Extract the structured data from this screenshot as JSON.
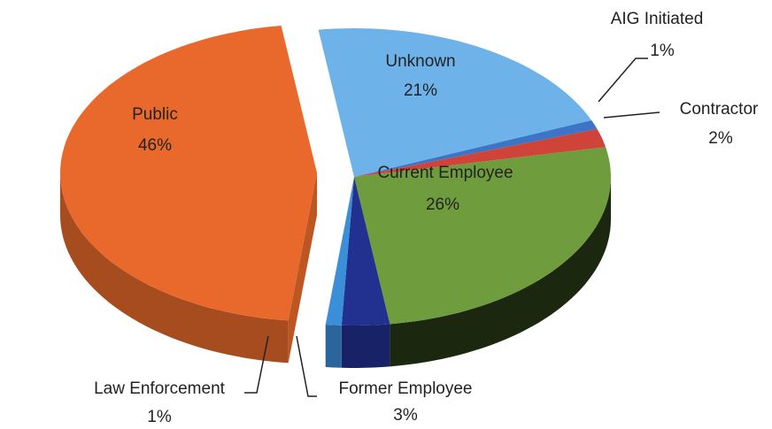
{
  "chart_data": {
    "type": "pie3d",
    "categories": [
      "Unknown",
      "AIG Initiated",
      "Contractor",
      "Current Employee",
      "Former Employee",
      "Law Enforcement",
      "Public"
    ],
    "values": [
      21,
      1,
      2,
      26,
      3,
      1,
      46
    ],
    "value_labels": [
      "21%",
      "1%",
      "2%",
      "26%",
      "3%",
      "1%",
      "46%"
    ],
    "colors": [
      "#6db3ea",
      "#3c74c6",
      "#cf4338",
      "#6f9d3e",
      "#22308f",
      "#3b8ed8",
      "#e8692b"
    ],
    "exploded": "Public"
  }
}
